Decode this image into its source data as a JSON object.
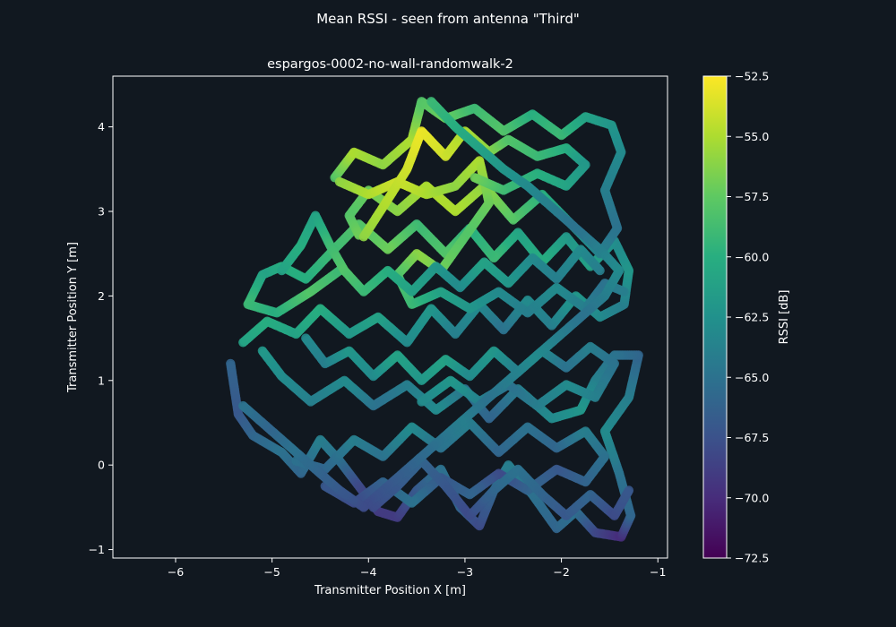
{
  "figure": {
    "suptitle": "Mean RSSI - seen from antenna \"Third\""
  },
  "chart_data": {
    "type": "scatter",
    "title": "espargos-0002-no-wall-randomwalk-2",
    "xlabel": "Transmitter Position X [m]",
    "ylabel": "Transmitter Position Y [m]",
    "xlim": [
      -6.65,
      -0.9
    ],
    "ylim": [
      -1.1,
      4.6
    ],
    "xticks": [
      -6,
      -5,
      -4,
      -3,
      -2,
      -1
    ],
    "xtick_labels": [
      "−6",
      "−5",
      "−4",
      "−3",
      "−2",
      "−1"
    ],
    "yticks": [
      -1,
      0,
      1,
      2,
      3,
      4
    ],
    "ytick_labels": [
      "−1",
      "0",
      "1",
      "2",
      "3",
      "4"
    ],
    "grid": false,
    "colormap": "viridis",
    "colorbar": {
      "label": "RSSI [dB]",
      "range": [
        -72.5,
        -52.5
      ],
      "ticks": [
        -72.5,
        -70.0,
        -67.5,
        -65.0,
        -62.5,
        -60.0,
        -57.5,
        -55.0,
        -52.5
      ],
      "tick_labels": [
        "−72.5",
        "−70.0",
        "−67.5",
        "−65.0",
        "−62.5",
        "−60.0",
        "−57.5",
        "−55.0",
        "−52.5"
      ]
    },
    "series": [
      {
        "path": [
          [
            -5.43,
            1.2
          ],
          [
            -5.35,
            0.6
          ],
          [
            -5.2,
            0.35
          ],
          [
            -4.9,
            0.15
          ],
          [
            -4.7,
            -0.1
          ],
          [
            -4.5,
            0.3
          ],
          [
            -4.3,
            0.05
          ],
          [
            -4.1,
            -0.25
          ],
          [
            -3.9,
            -0.55
          ],
          [
            -3.7,
            -0.62
          ],
          [
            -3.5,
            -0.3
          ],
          [
            -3.25,
            -0.05
          ],
          [
            -3.05,
            -0.5
          ],
          [
            -2.85,
            -0.72
          ],
          [
            -2.7,
            -0.3
          ],
          [
            -2.55,
            0.0
          ],
          [
            -2.3,
            -0.35
          ],
          [
            -2.05,
            -0.75
          ],
          [
            -1.85,
            -0.55
          ],
          [
            -1.65,
            -0.8
          ],
          [
            -1.38,
            -0.85
          ],
          [
            -1.28,
            -0.6
          ],
          [
            -1.4,
            -0.1
          ],
          [
            -1.55,
            0.4
          ],
          [
            -1.3,
            0.8
          ],
          [
            -1.2,
            1.3
          ],
          [
            -1.45,
            1.3
          ],
          [
            -1.65,
            1.0
          ],
          [
            -1.8,
            0.65
          ],
          [
            -2.1,
            0.55
          ],
          [
            -2.45,
            0.9
          ],
          [
            -2.75,
            0.55
          ],
          [
            -3.0,
            0.9
          ],
          [
            -3.3,
            0.65
          ],
          [
            -3.6,
            0.95
          ],
          [
            -3.95,
            0.7
          ],
          [
            -4.25,
            1.0
          ],
          [
            -4.6,
            0.75
          ],
          [
            -4.9,
            1.05
          ],
          [
            -5.1,
            1.35
          ]
        ],
        "rssi": [
          -66,
          -67,
          -66,
          -65,
          -66,
          -64,
          -65,
          -68,
          -69,
          -69,
          -67,
          -65,
          -66,
          -68,
          -66,
          -64,
          -65,
          -66,
          -65,
          -68,
          -70,
          -66,
          -65,
          -63,
          -64,
          -66,
          -65,
          -64,
          -62,
          -63,
          -64,
          -66,
          -65,
          -63,
          -64,
          -65,
          -63,
          -64,
          -63,
          -62
        ]
      },
      {
        "path": [
          [
            -5.3,
            1.45
          ],
          [
            -5.05,
            1.7
          ],
          [
            -4.75,
            1.55
          ],
          [
            -4.5,
            1.85
          ],
          [
            -4.2,
            1.55
          ],
          [
            -3.9,
            1.75
          ],
          [
            -3.6,
            1.45
          ],
          [
            -3.35,
            1.85
          ],
          [
            -3.1,
            1.55
          ],
          [
            -2.85,
            1.9
          ],
          [
            -2.6,
            1.6
          ],
          [
            -2.35,
            1.95
          ],
          [
            -2.1,
            1.65
          ],
          [
            -1.85,
            2.0
          ],
          [
            -1.6,
            1.75
          ],
          [
            -1.35,
            1.9
          ],
          [
            -1.3,
            2.3
          ],
          [
            -1.45,
            2.65
          ],
          [
            -1.7,
            2.35
          ],
          [
            -1.95,
            2.7
          ],
          [
            -2.2,
            2.4
          ],
          [
            -2.45,
            2.75
          ],
          [
            -2.7,
            2.45
          ],
          [
            -2.95,
            2.8
          ],
          [
            -3.2,
            2.5
          ],
          [
            -3.5,
            2.85
          ],
          [
            -3.8,
            2.55
          ],
          [
            -4.1,
            2.85
          ],
          [
            -4.4,
            2.5
          ],
          [
            -4.65,
            2.2
          ],
          [
            -4.9,
            2.35
          ],
          [
            -5.1,
            2.25
          ],
          [
            -5.25,
            1.9
          ],
          [
            -4.95,
            1.8
          ],
          [
            -4.6,
            2.05
          ],
          [
            -4.3,
            2.3
          ]
        ],
        "rssi": [
          -61,
          -60,
          -61,
          -60,
          -62,
          -61,
          -63,
          -62,
          -64,
          -63,
          -65,
          -63,
          -64,
          -62,
          -63,
          -64,
          -62,
          -63,
          -61,
          -62,
          -60,
          -61,
          -59,
          -60,
          -58,
          -59,
          -57,
          -58,
          -59,
          -60,
          -60,
          -61,
          -59,
          -60,
          -58,
          -59
        ]
      },
      {
        "path": [
          [
            -4.35,
            3.4
          ],
          [
            -4.15,
            3.7
          ],
          [
            -3.85,
            3.55
          ],
          [
            -3.55,
            3.85
          ],
          [
            -3.45,
            4.3
          ],
          [
            -3.2,
            4.1
          ],
          [
            -2.9,
            4.22
          ],
          [
            -2.6,
            3.95
          ],
          [
            -2.3,
            4.15
          ],
          [
            -2.0,
            3.9
          ],
          [
            -1.75,
            4.12
          ],
          [
            -1.48,
            4.02
          ],
          [
            -1.38,
            3.7
          ],
          [
            -1.55,
            3.25
          ],
          [
            -1.42,
            2.8
          ],
          [
            -1.6,
            2.5
          ],
          [
            -1.9,
            2.85
          ],
          [
            -2.2,
            3.2
          ],
          [
            -2.5,
            2.9
          ],
          [
            -2.8,
            3.3
          ],
          [
            -3.1,
            3.0
          ],
          [
            -3.4,
            3.3
          ],
          [
            -3.7,
            3.0
          ],
          [
            -4.0,
            3.25
          ],
          [
            -4.2,
            2.95
          ],
          [
            -4.1,
            2.72
          ]
        ],
        "rssi": [
          -58,
          -55,
          -56,
          -55,
          -58,
          -57,
          -59,
          -58,
          -60,
          -59,
          -61,
          -62,
          -63,
          -64,
          -65,
          -64,
          -62,
          -60,
          -58,
          -56,
          -55,
          -55,
          -56,
          -57,
          -58,
          -57
        ]
      },
      {
        "path": [
          [
            -4.3,
            3.35
          ],
          [
            -4.0,
            3.2
          ],
          [
            -3.7,
            3.35
          ],
          [
            -3.4,
            3.2
          ],
          [
            -3.1,
            3.3
          ],
          [
            -2.85,
            3.6
          ],
          [
            -2.75,
            3.1
          ],
          [
            -3.0,
            2.7
          ],
          [
            -3.25,
            2.3
          ],
          [
            -3.5,
            2.5
          ],
          [
            -3.7,
            2.25
          ],
          [
            -3.55,
            1.9
          ],
          [
            -3.25,
            2.05
          ],
          [
            -2.95,
            1.85
          ],
          [
            -2.65,
            2.05
          ],
          [
            -2.35,
            1.8
          ],
          [
            -2.05,
            2.1
          ],
          [
            -1.75,
            1.85
          ],
          [
            -1.55,
            2.15
          ],
          [
            -1.35,
            2.05
          ]
        ],
        "rssi": [
          -56,
          -55,
          -54,
          -55,
          -56,
          -55,
          -57,
          -58,
          -57,
          -56,
          -58,
          -59,
          -61,
          -62,
          -63,
          -64,
          -63,
          -64,
          -65,
          -64
        ]
      },
      {
        "path": [
          [
            -4.05,
            2.7
          ],
          [
            -3.85,
            3.05
          ],
          [
            -3.6,
            3.5
          ],
          [
            -3.45,
            3.95
          ],
          [
            -3.2,
            3.65
          ],
          [
            -3.0,
            3.95
          ],
          [
            -2.75,
            3.7
          ],
          [
            -2.55,
            3.85
          ],
          [
            -2.25,
            3.65
          ],
          [
            -1.95,
            3.75
          ],
          [
            -1.75,
            3.55
          ],
          [
            -1.95,
            3.3
          ],
          [
            -2.25,
            3.45
          ],
          [
            -2.6,
            3.25
          ],
          [
            -2.9,
            3.4
          ]
        ],
        "rssi": [
          -56,
          -55,
          -54,
          -53,
          -54,
          -55,
          -56,
          -58,
          -59,
          -60,
          -62,
          -61,
          -60,
          -59,
          -57
        ]
      },
      {
        "path": [
          [
            -4.75,
            0.05
          ],
          [
            -4.45,
            -0.05
          ],
          [
            -4.15,
            0.3
          ],
          [
            -3.85,
            0.1
          ],
          [
            -3.55,
            0.45
          ],
          [
            -3.25,
            0.2
          ],
          [
            -2.95,
            0.5
          ],
          [
            -2.65,
            0.15
          ],
          [
            -2.35,
            0.45
          ],
          [
            -2.05,
            0.2
          ],
          [
            -1.75,
            0.4
          ],
          [
            -1.55,
            0.1
          ],
          [
            -1.75,
            -0.2
          ],
          [
            -2.05,
            -0.05
          ],
          [
            -2.35,
            -0.3
          ],
          [
            -2.65,
            -0.1
          ],
          [
            -2.95,
            -0.35
          ],
          [
            -3.25,
            -0.15
          ],
          [
            -3.55,
            -0.45
          ],
          [
            -3.85,
            -0.2
          ],
          [
            -4.15,
            -0.45
          ],
          [
            -4.45,
            -0.25
          ]
        ],
        "rssi": [
          -65,
          -66,
          -64,
          -65,
          -63,
          -65,
          -64,
          -66,
          -65,
          -66,
          -64,
          -65,
          -66,
          -67,
          -66,
          -68,
          -66,
          -67,
          -65,
          -66,
          -68,
          -67
        ]
      },
      {
        "path": [
          [
            -4.65,
            1.5
          ],
          [
            -4.45,
            1.2
          ],
          [
            -4.2,
            1.35
          ],
          [
            -3.95,
            1.05
          ],
          [
            -3.7,
            1.3
          ],
          [
            -3.45,
            1.0
          ],
          [
            -3.2,
            1.25
          ],
          [
            -2.95,
            1.05
          ],
          [
            -2.7,
            1.35
          ],
          [
            -2.45,
            1.1
          ],
          [
            -2.2,
            1.35
          ],
          [
            -1.95,
            1.15
          ],
          [
            -1.7,
            1.4
          ],
          [
            -1.45,
            1.2
          ],
          [
            -1.65,
            0.8
          ],
          [
            -1.95,
            0.95
          ],
          [
            -2.25,
            0.7
          ],
          [
            -2.55,
            0.95
          ],
          [
            -2.85,
            0.75
          ],
          [
            -3.15,
            1.0
          ],
          [
            -3.45,
            0.75
          ]
        ],
        "rssi": [
          -63,
          -64,
          -62,
          -63,
          -61,
          -62,
          -61,
          -63,
          -62,
          -64,
          -63,
          -65,
          -64,
          -65,
          -64,
          -63,
          -64,
          -65,
          -64,
          -62,
          -63
        ]
      },
      {
        "path": [
          [
            -4.9,
            2.3
          ],
          [
            -4.7,
            2.6
          ],
          [
            -4.55,
            2.95
          ],
          [
            -4.4,
            2.6
          ],
          [
            -4.25,
            2.3
          ],
          [
            -4.05,
            2.05
          ],
          [
            -3.8,
            2.3
          ],
          [
            -3.55,
            2.05
          ],
          [
            -3.3,
            2.35
          ],
          [
            -3.05,
            2.1
          ],
          [
            -2.8,
            2.4
          ],
          [
            -2.55,
            2.15
          ],
          [
            -2.3,
            2.45
          ],
          [
            -2.05,
            2.2
          ],
          [
            -1.8,
            2.55
          ],
          [
            -1.6,
            2.3
          ]
        ],
        "rssi": [
          -61,
          -60,
          -61,
          -59,
          -58,
          -59,
          -60,
          -61,
          -62,
          -63,
          -61,
          -62,
          -63,
          -64,
          -63,
          -64
        ]
      },
      {
        "path": [
          [
            -3.95,
            -0.5
          ],
          [
            -3.7,
            -0.25
          ],
          [
            -3.45,
            0.05
          ],
          [
            -3.2,
            -0.25
          ],
          [
            -2.95,
            -0.6
          ],
          [
            -2.7,
            -0.3
          ],
          [
            -2.45,
            -0.05
          ],
          [
            -2.2,
            -0.35
          ],
          [
            -1.95,
            -0.6
          ],
          [
            -1.7,
            -0.35
          ],
          [
            -1.45,
            -0.6
          ],
          [
            -1.3,
            -0.3
          ]
        ],
        "rssi": [
          -68,
          -67,
          -66,
          -67,
          -68,
          -66,
          -65,
          -66,
          -67,
          -66,
          -68,
          -67
        ]
      },
      {
        "path": [
          [
            -3.35,
            4.3
          ],
          [
            -3.1,
            4.0
          ],
          [
            -2.85,
            3.75
          ],
          [
            -2.6,
            3.5
          ],
          [
            -2.35,
            3.3
          ],
          [
            -2.1,
            3.05
          ],
          [
            -1.85,
            2.8
          ],
          [
            -1.6,
            2.55
          ],
          [
            -1.4,
            2.3
          ],
          [
            -1.55,
            2.0
          ],
          [
            -1.8,
            1.75
          ],
          [
            -2.05,
            1.5
          ],
          [
            -2.3,
            1.25
          ],
          [
            -2.55,
            1.0
          ],
          [
            -2.8,
            0.75
          ],
          [
            -3.05,
            0.5
          ],
          [
            -3.3,
            0.25
          ],
          [
            -3.55,
            0.0
          ],
          [
            -3.8,
            -0.25
          ],
          [
            -4.05,
            -0.5
          ],
          [
            -4.3,
            -0.3
          ],
          [
            -4.55,
            -0.05
          ],
          [
            -4.8,
            0.2
          ],
          [
            -5.05,
            0.45
          ],
          [
            -5.3,
            0.7
          ]
        ],
        "rssi": [
          -59,
          -60,
          -61,
          -62,
          -63,
          -64,
          -65,
          -64,
          -63,
          -64,
          -65,
          -64,
          -63,
          -64,
          -65,
          -64,
          -65,
          -66,
          -67,
          -68,
          -67,
          -66,
          -65,
          -66,
          -65
        ]
      }
    ]
  }
}
